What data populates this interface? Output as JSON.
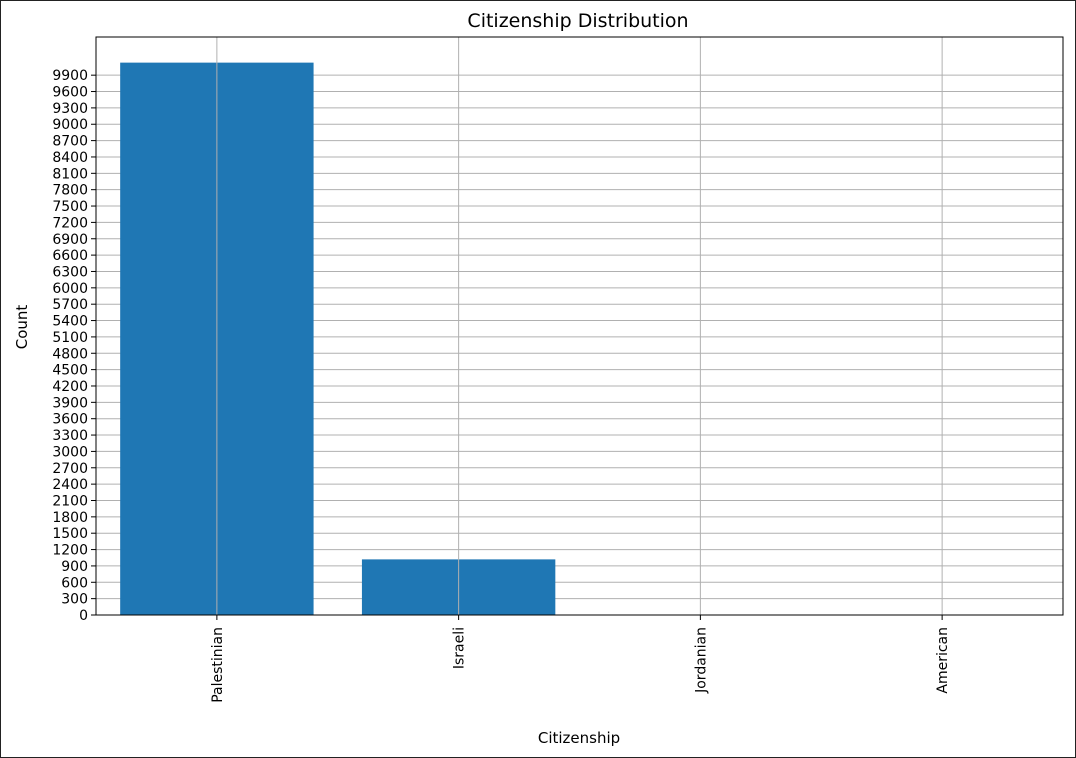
{
  "chart_data": {
    "type": "bar",
    "title": "Citizenship Distribution",
    "xlabel": "Citizenship",
    "ylabel": "Count",
    "categories": [
      "Palestinian",
      "Israeli",
      "Jordanian",
      "American"
    ],
    "values": [
      10130,
      1020,
      3,
      1
    ],
    "ylim": [
      0,
      10600
    ],
    "yticks": [
      0,
      300,
      600,
      900,
      1200,
      1500,
      1800,
      2100,
      2400,
      2700,
      3000,
      3300,
      3600,
      3900,
      4200,
      4500,
      4800,
      5100,
      5400,
      5700,
      6000,
      6300,
      6600,
      6900,
      7200,
      7500,
      7800,
      8100,
      8400,
      8700,
      9000,
      9300,
      9600,
      9900
    ],
    "grid": true,
    "bar_color": "#1f77b4",
    "grid_color": "#b0b0b0"
  }
}
